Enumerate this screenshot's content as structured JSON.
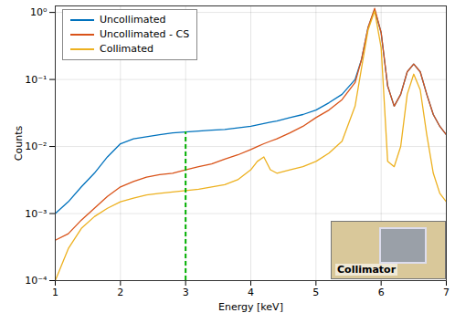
{
  "chart_data": {
    "type": "line",
    "x_label": "Energy [keV]",
    "y_label": "Counts",
    "log": "y",
    "grid": true,
    "legend": "top-left",
    "xlim": [
      1,
      7
    ],
    "xticks": [
      1,
      2,
      3,
      4,
      5,
      6,
      7
    ],
    "ylim": [
      0.0001,
      1.25
    ],
    "yticks": [
      {
        "value": 0.0001,
        "label": "10⁻⁴"
      },
      {
        "value": 0.001,
        "label": "10⁻³"
      },
      {
        "value": 0.01,
        "label": "10⁻²"
      },
      {
        "value": 0.1,
        "label": "10⁻¹"
      },
      {
        "value": 1,
        "label": "10⁰"
      }
    ],
    "x": [
      1,
      1.2,
      1.4,
      1.6,
      1.8,
      2,
      2.2,
      2.4,
      2.6,
      2.8,
      3,
      3.2,
      3.4,
      3.6,
      3.8,
      4,
      4.1,
      4.2,
      4.3,
      4.4,
      4.6,
      4.8,
      5,
      5.2,
      5.4,
      5.6,
      5.7,
      5.8,
      5.9,
      6,
      6.1,
      6.2,
      6.3,
      6.4,
      6.5,
      6.6,
      6.7,
      6.8,
      6.9,
      7
    ],
    "series": [
      {
        "name": "Uncollimated",
        "color": "#0072bd",
        "values": [
          0.001,
          0.0015,
          0.0025,
          0.004,
          0.007,
          0.011,
          0.013,
          0.014,
          0.015,
          0.016,
          0.0165,
          0.017,
          0.0175,
          0.018,
          0.019,
          0.02,
          0.021,
          0.022,
          0.023,
          0.024,
          0.027,
          0.03,
          0.035,
          0.045,
          0.06,
          0.1,
          0.2,
          0.6,
          1.1,
          0.5,
          0.08,
          0.04,
          0.06,
          0.13,
          0.17,
          0.13,
          0.06,
          0.03,
          0.02,
          0.015
        ]
      },
      {
        "name": "Uncollimated - CS",
        "color": "#d95319",
        "values": [
          0.0004,
          0.0005,
          0.0008,
          0.0012,
          0.0018,
          0.0025,
          0.003,
          0.0035,
          0.0038,
          0.004,
          0.0045,
          0.005,
          0.0055,
          0.0065,
          0.0075,
          0.009,
          0.01,
          0.011,
          0.012,
          0.013,
          0.016,
          0.02,
          0.027,
          0.035,
          0.05,
          0.09,
          0.2,
          0.6,
          1.15,
          0.5,
          0.08,
          0.04,
          0.06,
          0.13,
          0.17,
          0.13,
          0.06,
          0.03,
          0.02,
          0.015
        ]
      },
      {
        "name": "Collimated",
        "color": "#edb120",
        "values": [
          0.0001,
          0.0003,
          0.0006,
          0.0009,
          0.0012,
          0.0015,
          0.0017,
          0.0019,
          0.002,
          0.0021,
          0.0022,
          0.0023,
          0.0025,
          0.0027,
          0.0032,
          0.0045,
          0.006,
          0.007,
          0.0045,
          0.004,
          0.0045,
          0.005,
          0.006,
          0.008,
          0.012,
          0.04,
          0.15,
          0.55,
          1.05,
          0.3,
          0.006,
          0.005,
          0.01,
          0.06,
          0.12,
          0.07,
          0.015,
          0.004,
          0.002,
          0.0015
        ]
      }
    ],
    "vline": {
      "x": 3,
      "y2": 0.0165,
      "color": "#00b000",
      "line_style": "dashed"
    },
    "inset_label": "Collimator"
  }
}
